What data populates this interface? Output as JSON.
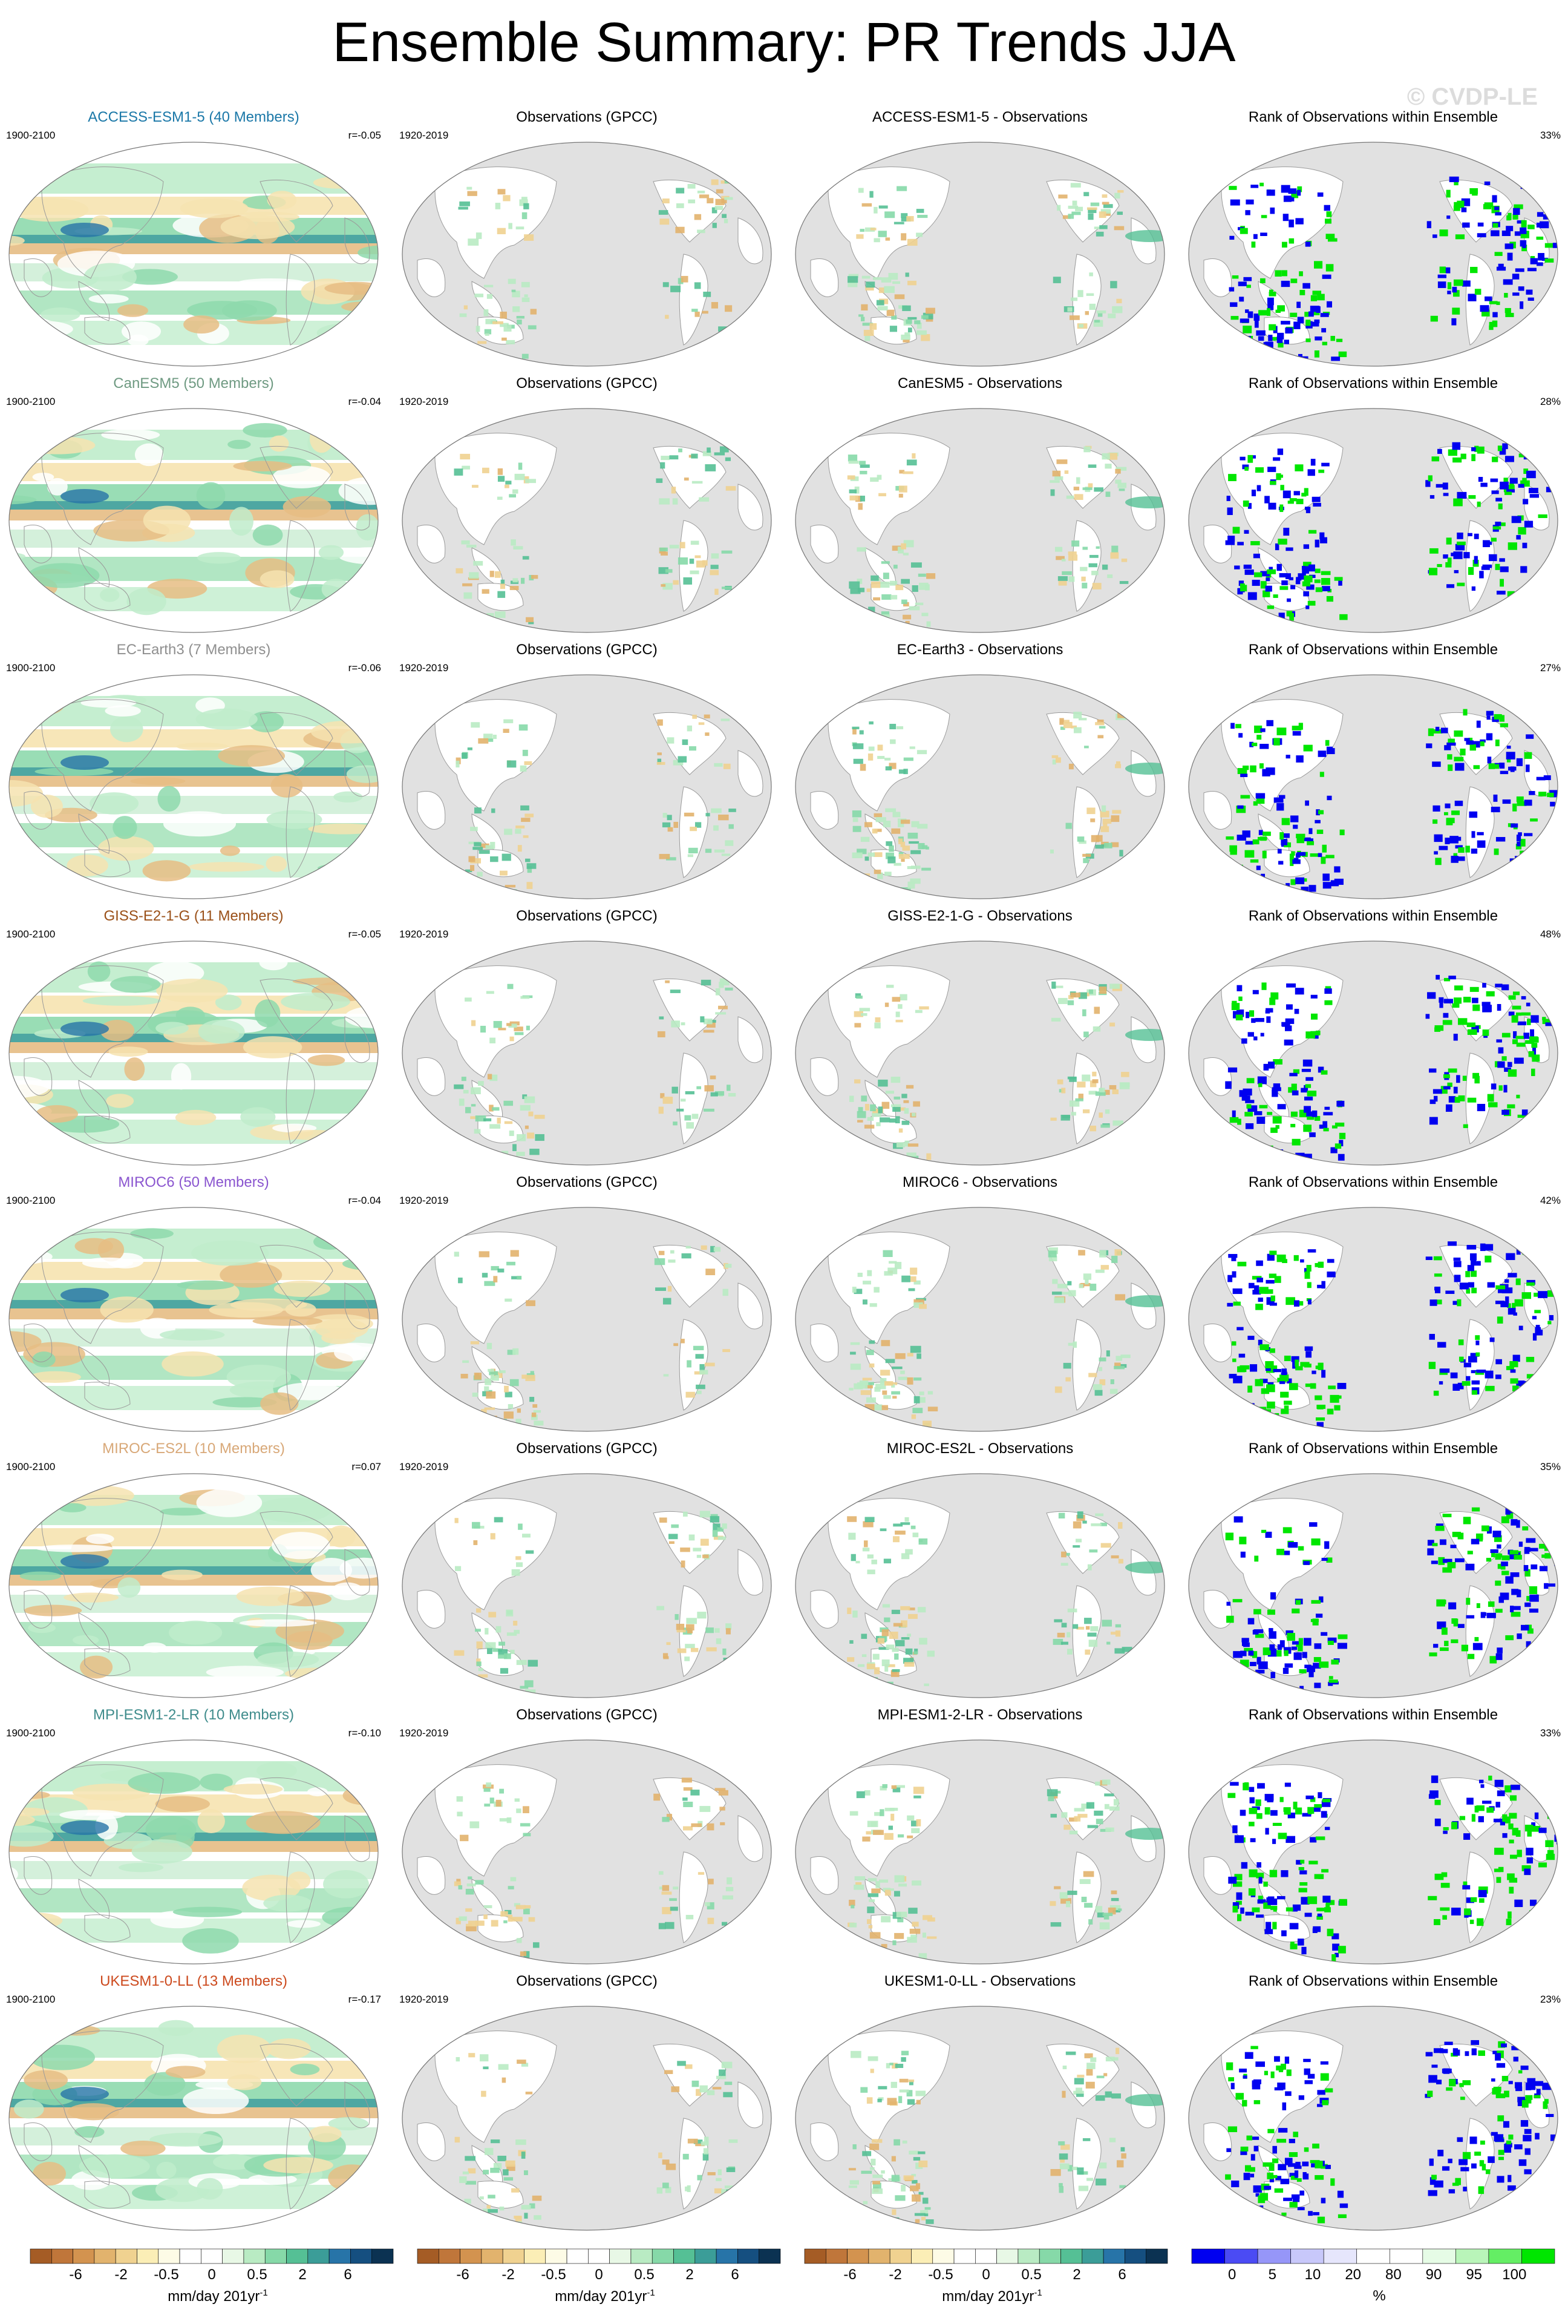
{
  "title": "Ensemble Summary: PR Trends JJA",
  "watermark": "© CVDP-LE",
  "rows": [
    {
      "model_title": "ACCESS-ESM1-5 (40 Members)",
      "model_color": "#1b78a8",
      "model_period": "1900-2100",
      "r_value": "r=-0.05",
      "obs_title": "Observations (GPCC)",
      "obs_period": "1920-2019",
      "diff_title": "ACCESS-ESM1-5 - Observations",
      "rank_title": "Rank of Observations within Ensemble",
      "rank_percent": "33%"
    },
    {
      "model_title": "CanESM5 (50 Members)",
      "model_color": "#6f9a82",
      "model_period": "1900-2100",
      "r_value": "r=-0.04",
      "obs_title": "Observations (GPCC)",
      "obs_period": "1920-2019",
      "diff_title": "CanESM5 - Observations",
      "rank_title": "Rank of Observations within Ensemble",
      "rank_percent": "28%"
    },
    {
      "model_title": "EC-Earth3 (7 Members)",
      "model_color": "#8f8f8f",
      "model_period": "1900-2100",
      "r_value": "r=-0.06",
      "obs_title": "Observations (GPCC)",
      "obs_period": "1920-2019",
      "diff_title": "EC-Earth3 - Observations",
      "rank_title": "Rank of Observations within Ensemble",
      "rank_percent": "27%"
    },
    {
      "model_title": "GISS-E2-1-G (11 Members)",
      "model_color": "#9a5018",
      "model_period": "1900-2100",
      "r_value": "r=-0.05",
      "obs_title": "Observations (GPCC)",
      "obs_period": "1920-2019",
      "diff_title": "GISS-E2-1-G - Observations",
      "rank_title": "Rank of Observations within Ensemble",
      "rank_percent": "48%"
    },
    {
      "model_title": "MIROC6 (50 Members)",
      "model_color": "#8a55cf",
      "model_period": "1900-2100",
      "r_value": "r=-0.04",
      "obs_title": "Observations (GPCC)",
      "obs_period": "1920-2019",
      "diff_title": "MIROC6 - Observations",
      "rank_title": "Rank of Observations within Ensemble",
      "rank_percent": "42%"
    },
    {
      "model_title": "MIROC-ES2L (10 Members)",
      "model_color": "#d8a878",
      "model_period": "1900-2100",
      "r_value": "r=0.07",
      "obs_title": "Observations (GPCC)",
      "obs_period": "1920-2019",
      "diff_title": "MIROC-ES2L - Observations",
      "rank_title": "Rank of Observations within Ensemble",
      "rank_percent": "35%"
    },
    {
      "model_title": "MPI-ESM1-2-LR (10 Members)",
      "model_color": "#3f8c8c",
      "model_period": "1900-2100",
      "r_value": "r=-0.10",
      "obs_title": "Observations (GPCC)",
      "obs_period": "1920-2019",
      "diff_title": "MPI-ESM1-2-LR - Observations",
      "rank_title": "Rank of Observations within Ensemble",
      "rank_percent": "33%"
    },
    {
      "model_title": "UKESM1-0-LL (13 Members)",
      "model_color": "#cc4a1e",
      "model_period": "1900-2100",
      "r_value": "r=-0.17",
      "obs_title": "Observations (GPCC)",
      "obs_period": "1920-2019",
      "diff_title": "UKESM1-0-LL - Observations",
      "rank_title": "Rank of Observations within Ensemble",
      "rank_percent": "23%"
    }
  ],
  "trend_colorbar": {
    "colors": [
      "#a55c25",
      "#c0763a",
      "#d3934f",
      "#e2b36d",
      "#f0d290",
      "#fbeeb6",
      "#fdfbe6",
      "#ffffff",
      "#ffffff",
      "#e8f8e6",
      "#b9ebc3",
      "#86d9a8",
      "#55c095",
      "#3b9d98",
      "#2774a8",
      "#154f80",
      "#0b3252"
    ],
    "tick_labels": [
      "-6",
      "-2",
      "-0.5",
      "0",
      "0.5",
      "2",
      "6"
    ],
    "unit": "mm/day 201yr",
    "unit_sup": "-1"
  },
  "rank_colorbar": {
    "colors": [
      "#0000f0",
      "#4b4bf4",
      "#9696f8",
      "#c8c8fa",
      "#e6e6fc",
      "#ffffff",
      "#ffffff",
      "#e6fce6",
      "#b9f5b9",
      "#64ee64",
      "#00e600"
    ],
    "tick_labels": [
      "0",
      "5",
      "10",
      "20",
      "80",
      "90",
      "95",
      "100"
    ],
    "unit": "%"
  }
}
